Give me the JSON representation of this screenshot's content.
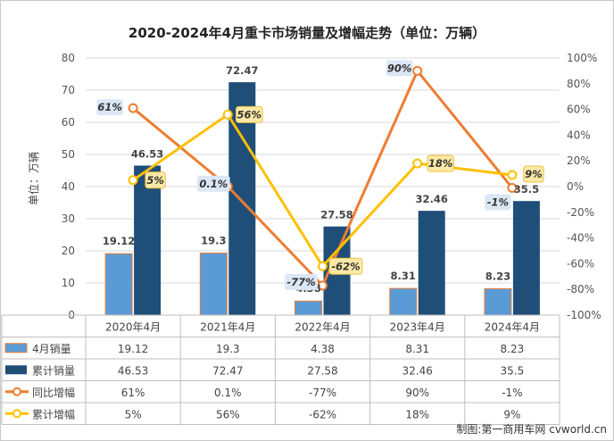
{
  "chart_data": {
    "type": "bar",
    "title": "2020-2024年4月重卡市场销量及增幅走势（单位：万辆）",
    "ylabel": "单位：万辆",
    "categories": [
      "2020年4月",
      "2021年4月",
      "2022年4月",
      "2023年4月",
      "2024年4月"
    ],
    "ylim": [
      0,
      80
    ],
    "yticks": [
      "0",
      "10",
      "20",
      "30",
      "40",
      "50",
      "60",
      "70",
      "80"
    ],
    "y2lim": [
      -100,
      100
    ],
    "y2ticks": [
      "-100%",
      "-80%",
      "-60%",
      "-40%",
      "-20%",
      "0%",
      "20%",
      "40%",
      "60%",
      "80%",
      "100%"
    ],
    "grid": true,
    "legend": "table-below",
    "series": [
      {
        "name": "4月销量",
        "type": "bar",
        "axis": "left",
        "color": "#5b9bd5",
        "values": [
          19.12,
          19.3,
          4.38,
          8.31,
          8.23
        ],
        "labels": [
          "19.12",
          "19.3",
          "4.38",
          "8.31",
          "8.23"
        ]
      },
      {
        "name": "累计销量",
        "type": "bar",
        "axis": "left",
        "color": "#1f4e79",
        "values": [
          46.53,
          72.47,
          27.58,
          32.46,
          35.5
        ],
        "labels": [
          "46.53",
          "72.47",
          "27.58",
          "32.46",
          "35.5"
        ]
      },
      {
        "name": "同比增幅",
        "type": "line",
        "axis": "right",
        "color": "#ed7d31",
        "values": [
          61,
          0.1,
          -77,
          90,
          -1
        ],
        "labels": [
          "61%",
          "0.1%",
          "-77%",
          "90%",
          "-1%"
        ]
      },
      {
        "name": "累计增幅",
        "type": "line",
        "axis": "right",
        "color": "#ffc000",
        "values": [
          5,
          56,
          -62,
          18,
          9
        ],
        "labels": [
          "5%",
          "56%",
          "-62%",
          "18%",
          "9%"
        ]
      }
    ]
  },
  "credit": "制图:第一商用车网 cvworld.cn"
}
